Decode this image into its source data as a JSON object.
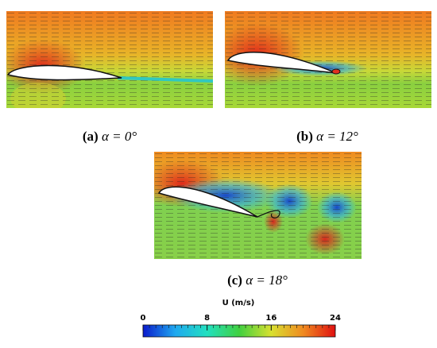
{
  "panels": [
    {
      "label": "(a)",
      "caption": "α = 0°"
    },
    {
      "label": "(b)",
      "caption": "α = 12°"
    },
    {
      "label": "(c)",
      "caption": "α = 18°"
    }
  ],
  "colorbar": {
    "title": "U (m/s)",
    "range": [
      0,
      24
    ],
    "ticks": [
      0,
      8,
      16,
      24
    ],
    "colormap": [
      "#0a1acc",
      "#1fa8f0",
      "#22e0c0",
      "#40d040",
      "#d8e030",
      "#f08a20",
      "#e01010"
    ]
  }
}
